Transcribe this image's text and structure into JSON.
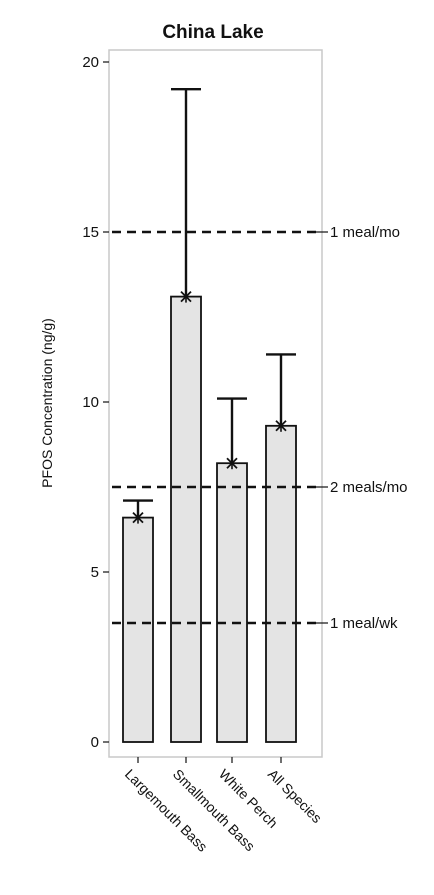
{
  "chart_data": {
    "type": "bar",
    "title": "China Lake",
    "ylabel": "PFOS Concentration (ng/g)",
    "xlabel": "",
    "ylim": [
      0,
      20
    ],
    "yticks": [
      0,
      5,
      10,
      15,
      20
    ],
    "grid": false,
    "categories": [
      "Largemouth Bass",
      "Smallmouth Bass",
      "White Perch",
      "All Species"
    ],
    "values": [
      6.6,
      13.1,
      8.2,
      9.3
    ],
    "error_upper": [
      7.1,
      19.2,
      10.1,
      11.4
    ],
    "means": [
      6.6,
      13.1,
      8.2,
      9.3
    ],
    "reference_lines": [
      {
        "value": 15,
        "label": "1 meal/mo"
      },
      {
        "value": 7.5,
        "label": "2 meals/mo"
      },
      {
        "value": 3.5,
        "label": "1 meal/wk"
      }
    ],
    "colors": {
      "bar_fill": "#e4e4e4",
      "bar_stroke": "#111111",
      "frame": "#c8c8c8",
      "ref_line": "#111111"
    }
  }
}
